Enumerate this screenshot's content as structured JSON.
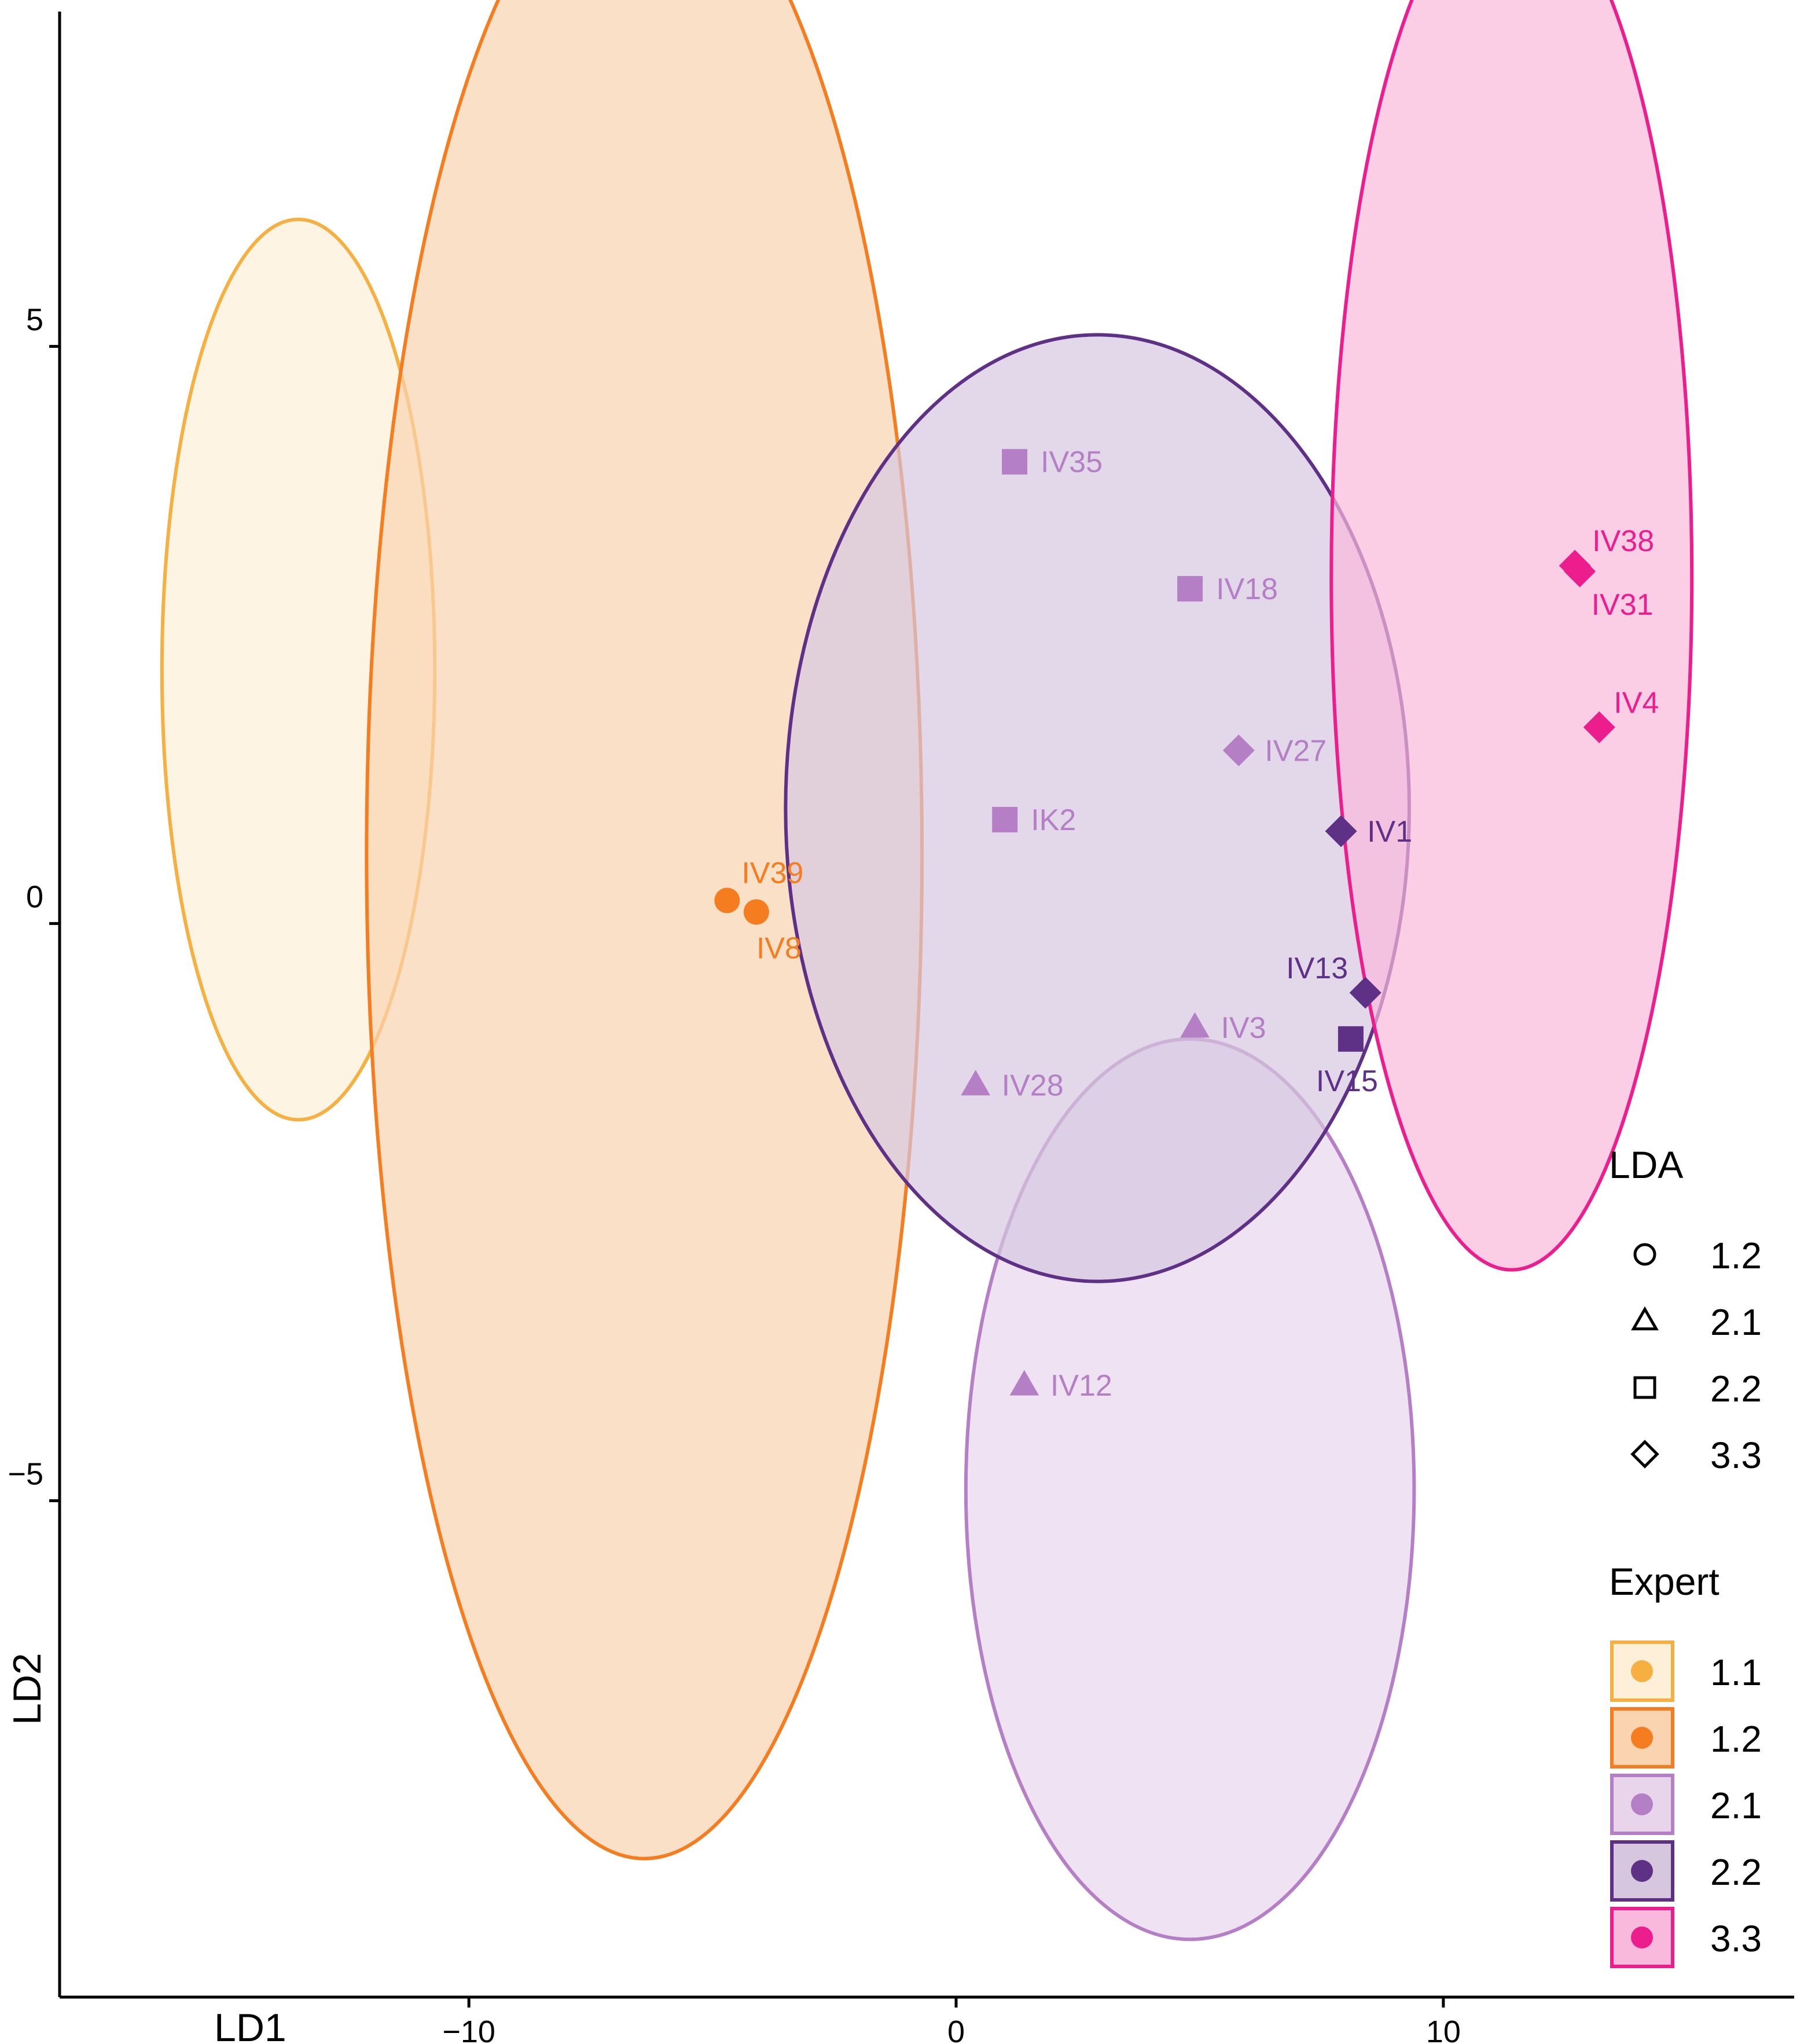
{
  "chart_data": {
    "type": "scatter",
    "xlabel": "LD1",
    "ylabel": "LD2",
    "xlim": [
      -18.4,
      17.2
    ],
    "ylim": [
      -9.3,
      7.9
    ],
    "x_ticks": [
      {
        "value": -10,
        "label": "−10"
      },
      {
        "value": 0,
        "label": "0"
      },
      {
        "value": 10,
        "label": "10"
      }
    ],
    "y_ticks": [
      {
        "value": -5,
        "label": "−5"
      },
      {
        "value": 0,
        "label": "0"
      },
      {
        "value": 5,
        "label": "5"
      }
    ],
    "grid": false,
    "groups": [
      {
        "name": "1.1",
        "color": "#F5B041",
        "fill": "#FDEFD8",
        "ellipse": {
          "cx": -13.5,
          "cy": 2.2,
          "rx": 2.8,
          "ry": 3.9
        }
      },
      {
        "name": "1.2",
        "color": "#F57C1F",
        "fill": "#FAD3B0",
        "ellipse": {
          "cx": -6.4,
          "cy": 0.6,
          "rx": 5.7,
          "ry": 8.7
        }
      },
      {
        "name": "2.1",
        "color": "#B47FC4",
        "fill": "#E8D5EC",
        "ellipse": {
          "cx": 4.8,
          "cy": -4.9,
          "rx": 4.6,
          "ry": 3.9
        }
      },
      {
        "name": "2.2",
        "color": "#5E3187",
        "fill": "#D6C7DF",
        "ellipse": {
          "cx": 2.9,
          "cy": 1.0,
          "rx": 6.4,
          "ry": 4.1
        }
      },
      {
        "name": "3.3",
        "color": "#EC1E8E",
        "fill": "#F9B9DC",
        "ellipse": {
          "cx": 11.4,
          "cy": 3.0,
          "rx": 3.7,
          "ry": 6.0
        }
      }
    ],
    "points": [
      {
        "label": "IV35",
        "x": 1.2,
        "y": 4.0,
        "lda": "2.2",
        "expert": "2.1"
      },
      {
        "label": "IV18",
        "x": 4.8,
        "y": 2.9,
        "lda": "2.2",
        "expert": "2.1"
      },
      {
        "label": "IV27",
        "x": 5.8,
        "y": 1.5,
        "lda": "3.3",
        "expert": "2.1"
      },
      {
        "label": "IK2",
        "x": 1.0,
        "y": 0.9,
        "lda": "2.2",
        "expert": "2.1"
      },
      {
        "label": "IV3",
        "x": 4.9,
        "y": -0.9,
        "lda": "2.1",
        "expert": "2.1"
      },
      {
        "label": "IV28",
        "x": 0.4,
        "y": -1.4,
        "lda": "2.1",
        "expert": "2.1"
      },
      {
        "label": "IV12",
        "x": 1.4,
        "y": -4.0,
        "lda": "2.1",
        "expert": "2.1"
      },
      {
        "label": "IV1",
        "x": 7.9,
        "y": 0.8,
        "lda": "3.3",
        "expert": "2.2"
      },
      {
        "label": "IV13",
        "x": 8.4,
        "y": -0.6,
        "lda": "3.3",
        "expert": "2.2"
      },
      {
        "label": "IV15",
        "x": 8.1,
        "y": -1.0,
        "lda": "2.2",
        "expert": "2.2"
      },
      {
        "label": "IV39",
        "x": -4.7,
        "y": 0.2,
        "lda": "1.2",
        "expert": "1.2"
      },
      {
        "label": "IV8",
        "x": -4.1,
        "y": 0.1,
        "lda": "1.2",
        "expert": "1.2"
      },
      {
        "label": "IV38",
        "x": 12.7,
        "y": 3.1,
        "lda": "3.3",
        "expert": "3.3"
      },
      {
        "label": "IV31",
        "x": 12.8,
        "y": 3.05,
        "lda": "3.3",
        "expert": "3.3"
      },
      {
        "label": "IV4",
        "x": 13.2,
        "y": 1.7,
        "lda": "3.3",
        "expert": "3.3"
      }
    ],
    "legend": {
      "placement": "right",
      "lda_title": "LDA",
      "lda_items": [
        {
          "label": "1.2",
          "shape": "circle"
        },
        {
          "label": "2.1",
          "shape": "triangle"
        },
        {
          "label": "2.2",
          "shape": "square"
        },
        {
          "label": "3.3",
          "shape": "diamond"
        }
      ],
      "expert_title": "Expert",
      "expert_items": [
        "1.1",
        "1.2",
        "2.1",
        "2.2",
        "3.3"
      ]
    }
  }
}
